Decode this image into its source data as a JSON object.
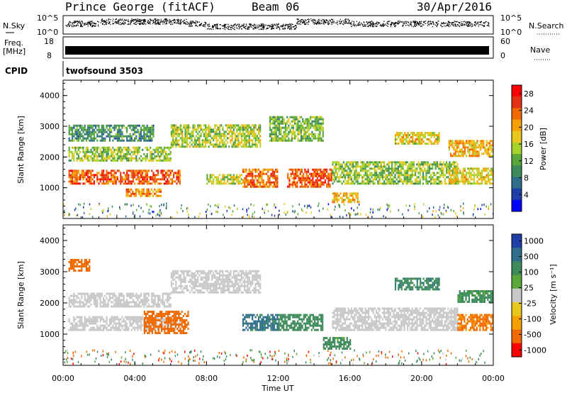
{
  "header": {
    "station": "Prince George (fitACF)",
    "beam": "Beam 06",
    "date": "30/Apr/2016"
  },
  "strips": {
    "nsky_label": "N.Sky",
    "nsky_ticks": [
      "10^5",
      "10^0"
    ],
    "nsearch_label": "N.Search",
    "nsearch_ticks": [
      "10^5",
      "10^0"
    ],
    "freq_label": "Freq.",
    "freq_unit": "[MHz]",
    "freq_ticks": [
      "18",
      "8"
    ],
    "nave_label": "Nave",
    "nave_ticks": [
      "60",
      "0"
    ],
    "cpid_label": "CPID",
    "cpid_value": "twofsound 3503"
  },
  "colors": {
    "power": [
      "#0000ff",
      "#1f3fa8",
      "#2e6e8a",
      "#3d8a5a",
      "#5aa83a",
      "#a8d22a",
      "#e8c81e",
      "#f5a000",
      "#f06a00",
      "#e53212",
      "#ff0000"
    ],
    "velocity_pos": [
      "#1f3fa8",
      "#2e6e8a",
      "#3d8a5a",
      "#5aa83a"
    ],
    "velocity_neg": [
      "#e8c81e",
      "#f5a000",
      "#f06a00",
      "#ff0000"
    ],
    "ground": "#c8c8c8"
  },
  "chart_data": [
    {
      "type": "heatmap",
      "panel": "power",
      "ylabel": "Slant Range [km]",
      "xlabel": "Time UT",
      "x_ticks": [
        "00:00",
        "04:00",
        "08:00",
        "12:00",
        "16:00",
        "20:00",
        "00:00"
      ],
      "y_ticks": [
        "1000",
        "2000",
        "3000",
        "4000"
      ],
      "ylim": [
        0,
        4500
      ],
      "xlim_hours": [
        0,
        24
      ],
      "colorbar_label": "Power [dB]",
      "colorbar_ticks": [
        "4",
        "8",
        "12",
        "16",
        "20",
        "24",
        "28"
      ],
      "colorbar_range": [
        0,
        30
      ],
      "bands": [
        {
          "t0": 0.3,
          "t1": 6.5,
          "r0": 1100,
          "r1": 1550,
          "p": 25
        },
        {
          "t0": 0.3,
          "t1": 6.0,
          "r0": 1850,
          "r1": 2300,
          "p": 14
        },
        {
          "t0": 0.3,
          "t1": 5.0,
          "r0": 2500,
          "r1": 3000,
          "p": 9
        },
        {
          "t0": 3.5,
          "t1": 5.5,
          "r0": 700,
          "r1": 950,
          "p": 22
        },
        {
          "t0": 6.0,
          "t1": 11.0,
          "r0": 2300,
          "r1": 3000,
          "p": 15
        },
        {
          "t0": 8.0,
          "t1": 10.0,
          "r0": 1100,
          "r1": 1400,
          "p": 16
        },
        {
          "t0": 10.0,
          "t1": 12.0,
          "r0": 1000,
          "r1": 1600,
          "p": 24
        },
        {
          "t0": 11.5,
          "t1": 14.5,
          "r0": 2500,
          "r1": 3300,
          "p": 13
        },
        {
          "t0": 12.5,
          "t1": 15.0,
          "r0": 1000,
          "r1": 1600,
          "p": 25
        },
        {
          "t0": 15.0,
          "t1": 16.5,
          "r0": 500,
          "r1": 800,
          "p": 20
        },
        {
          "t0": 15.0,
          "t1": 22.0,
          "r0": 1100,
          "r1": 1800,
          "p": 14
        },
        {
          "t0": 18.5,
          "t1": 21.0,
          "r0": 2400,
          "r1": 2800,
          "p": 18
        },
        {
          "t0": 21.5,
          "t1": 24.0,
          "r0": 2000,
          "r1": 2500,
          "p": 20
        },
        {
          "t0": 21.5,
          "t1": 24.0,
          "r0": 1100,
          "r1": 1600,
          "p": 18
        }
      ]
    },
    {
      "type": "heatmap",
      "panel": "velocity",
      "ylabel": "Slant Range [km]",
      "xlabel": "Time UT",
      "x_ticks": [
        "00:00",
        "04:00",
        "08:00",
        "12:00",
        "16:00",
        "20:00",
        "00:00"
      ],
      "y_ticks": [
        "1000",
        "2000",
        "3000",
        "4000"
      ],
      "ylim": [
        0,
        4500
      ],
      "xlim_hours": [
        0,
        24
      ],
      "colorbar_label": "Velocity [m s⁻¹]",
      "colorbar_ticks": [
        "1000",
        "500",
        "100",
        "25",
        "-25",
        "-100",
        "-500",
        "-1000"
      ],
      "bands": [
        {
          "t0": 0.3,
          "t1": 6.5,
          "r0": 1100,
          "r1": 1550,
          "v": 0
        },
        {
          "t0": 0.3,
          "t1": 6.0,
          "r0": 1850,
          "r1": 2300,
          "v": 0
        },
        {
          "t0": 4.5,
          "t1": 7.0,
          "r0": 1000,
          "r1": 1700,
          "v": -300
        },
        {
          "t0": 6.0,
          "t1": 11.0,
          "r0": 2300,
          "r1": 3000,
          "v": 0
        },
        {
          "t0": 10.0,
          "t1": 12.0,
          "r0": 1100,
          "r1": 1600,
          "v": 700
        },
        {
          "t0": 12.0,
          "t1": 14.5,
          "r0": 1100,
          "r1": 1600,
          "v": 300
        },
        {
          "t0": 14.5,
          "t1": 16.0,
          "r0": 500,
          "r1": 900,
          "v": 150
        },
        {
          "t0": 15.0,
          "t1": 22.0,
          "r0": 1100,
          "r1": 1800,
          "v": 0
        },
        {
          "t0": 18.5,
          "t1": 21.0,
          "r0": 2400,
          "r1": 2800,
          "v": 400
        },
        {
          "t0": 22.0,
          "t1": 24.0,
          "r0": 1100,
          "r1": 1600,
          "v": -400
        },
        {
          "t0": 22.0,
          "t1": 24.0,
          "r0": 2000,
          "r1": 2400,
          "v": 150
        },
        {
          "t0": 0.3,
          "t1": 1.5,
          "r0": 3000,
          "r1": 3400,
          "v": -300
        }
      ]
    }
  ]
}
